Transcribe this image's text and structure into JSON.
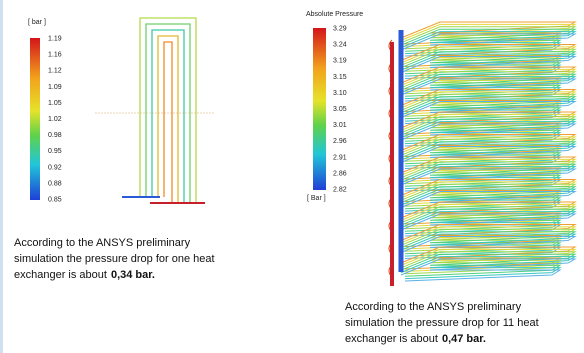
{
  "left_legend": {
    "unit": "[ bar ]",
    "ticks": [
      "1.19",
      "1.16",
      "1.12",
      "1.09",
      "1.05",
      "1.02",
      "0.98",
      "0.95",
      "0.92",
      "0.88",
      "0.85"
    ]
  },
  "right_legend": {
    "title": "Absolute Pressure",
    "unit": "[ Bar ]",
    "ticks": [
      "3.29",
      "3.24",
      "3.19",
      "3.15",
      "3.10",
      "3.05",
      "3.01",
      "2.96",
      "2.91",
      "2.86",
      "2.82"
    ]
  },
  "left_caption": {
    "lines": [
      "According to the ANSYS preliminary",
      "simulation the pressure drop for one heat",
      "exchanger is about"
    ],
    "bold": "0,34 bar."
  },
  "right_caption": {
    "lines": [
      "According to the ANSYS preliminary",
      "simulation the pressure drop for 11 heat",
      "exchanger is about"
    ],
    "bold": "0,47 bar."
  }
}
